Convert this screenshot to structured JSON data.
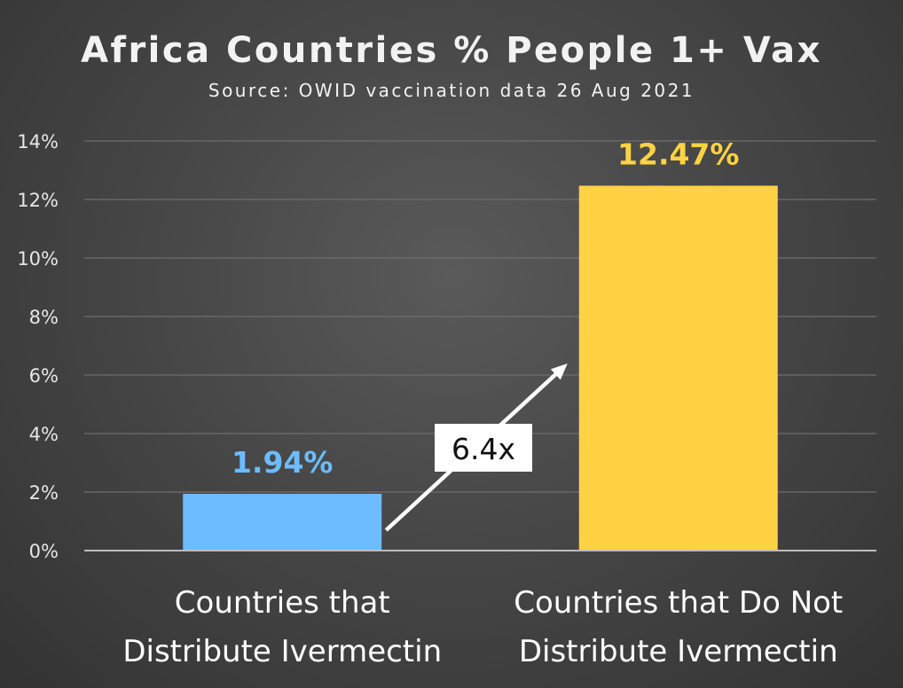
{
  "chart_data": {
    "type": "bar",
    "title": "Africa Countries % People 1+ Vax",
    "subtitle": "Source: OWID vaccination data 26 Aug 2021",
    "categories": [
      [
        "Countries that",
        "Distribute Ivermectin"
      ],
      [
        "Countries that Do Not",
        "Distribute Ivermectin"
      ]
    ],
    "values": [
      1.94,
      12.47
    ],
    "data_labels": [
      "1.94%",
      "12.47%"
    ],
    "bar_colors": [
      "#6cbcff",
      "#ffd243"
    ],
    "ylim": [
      0,
      14
    ],
    "yticks": [
      0,
      2,
      4,
      6,
      8,
      10,
      12,
      14
    ],
    "ytick_labels": [
      "0%",
      "2%",
      "4%",
      "6%",
      "8%",
      "10%",
      "12%",
      "14%"
    ],
    "grid": true,
    "annotation": {
      "text": "6.4x",
      "from_category": 0,
      "to_category": 1
    }
  }
}
